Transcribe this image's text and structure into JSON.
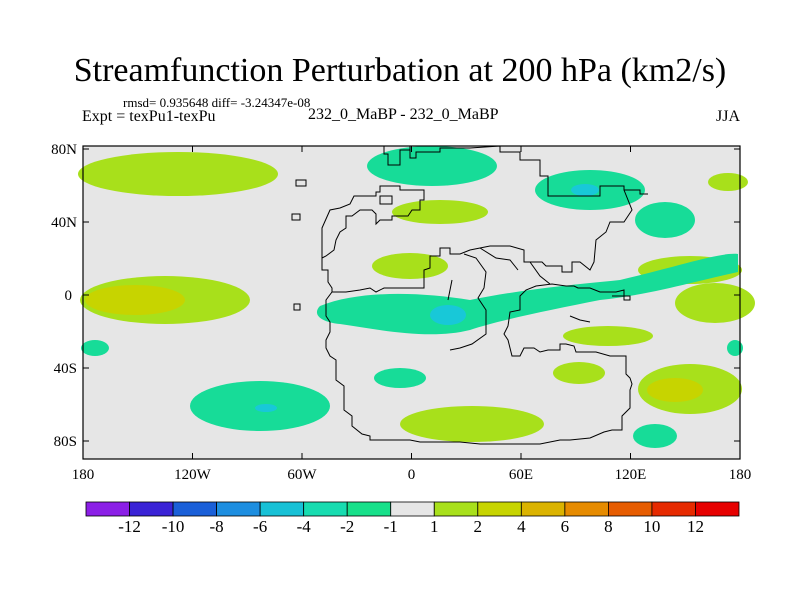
{
  "title": "Streamfunction Perturbation at 200 hPa (km2/s)",
  "stats": "rmsd= 0.935648 diff= -3.24347e-08",
  "experiment": "Expt = texPu1-texPu",
  "center_label": "232_0_MaBP - 232_0_MaBP",
  "season": "JJA",
  "lat_labels": [
    "80N",
    "40N",
    "0",
    "40S",
    "80S"
  ],
  "lon_labels": [
    "180",
    "120W",
    "60W",
    "0",
    "60E",
    "120E",
    "180"
  ],
  "colorbar": {
    "colors": [
      "#8b1fe6",
      "#3a23d6",
      "#1a5fd8",
      "#1d8ee0",
      "#18c1d6",
      "#17dcb0",
      "#17e08a",
      "#e6e6e6",
      "#a8e01b",
      "#c7d400",
      "#dbb300",
      "#e68b00",
      "#e65c00",
      "#e62a00",
      "#e60000"
    ],
    "labels": [
      "-12",
      "-10",
      "-8",
      "-6",
      "-4",
      "-2",
      "-1",
      "1",
      "2",
      "4",
      "6",
      "8",
      "10",
      "12"
    ]
  },
  "map_colors": {
    "background": "#e6e6e6",
    "neg_light": "#17dc98",
    "neg_strong": "#18c8d8",
    "pos_light": "#a8e01b",
    "pos_strong": "#c7d400"
  }
}
